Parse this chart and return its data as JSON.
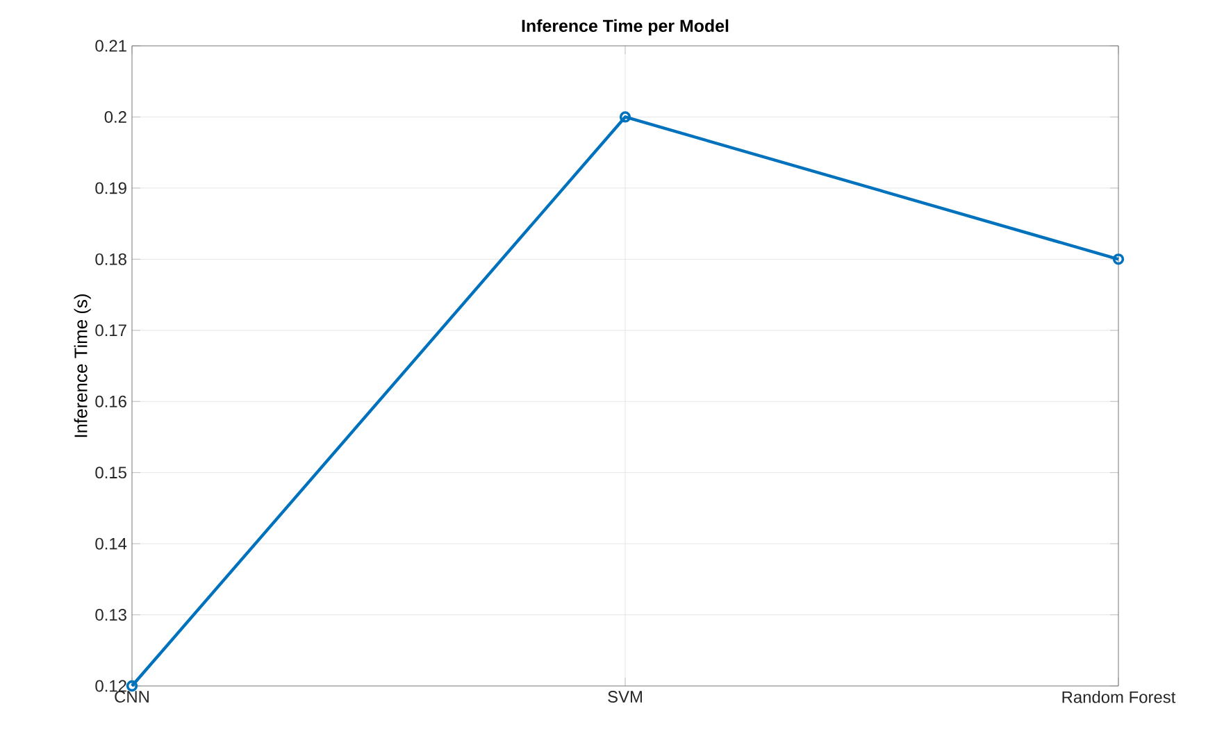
{
  "chart_data": {
    "type": "line",
    "title": "Inference Time per Model",
    "ylabel": "Inference Time (s)",
    "categories": [
      "CNN",
      "SVM",
      "Random Forest"
    ],
    "series": [
      {
        "color": "#0072bd",
        "values": [
          0.12,
          0.2,
          0.18
        ]
      }
    ],
    "ylim": [
      0.12,
      0.21
    ],
    "yticks": [
      0.12,
      0.13,
      0.14,
      0.15,
      0.16,
      0.17,
      0.18,
      0.19,
      0.2,
      0.21
    ],
    "grid": true,
    "marker": "circle",
    "line_style": "solid"
  }
}
